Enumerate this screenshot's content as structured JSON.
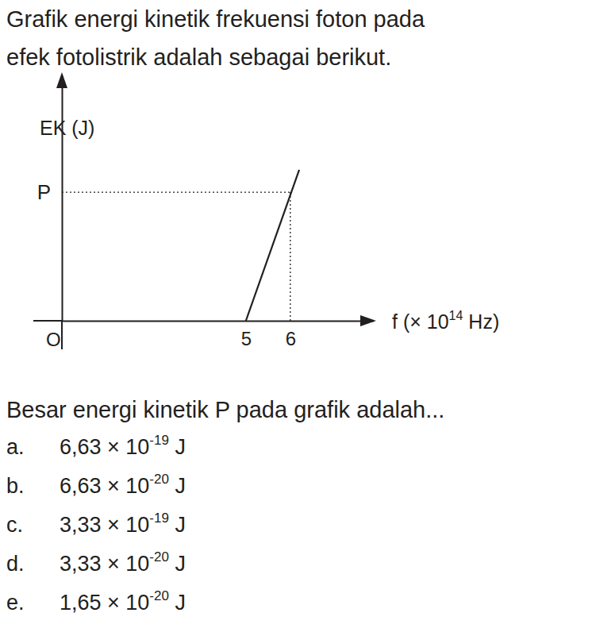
{
  "question": {
    "intro_lines": [
      "Grafik energi kinetik frekuensi foton pada",
      "efek fotolistrik adalah sebagai berikut."
    ],
    "prompt": "Besar energi kinetik P pada grafik adalah..."
  },
  "chart_data": {
    "type": "line",
    "ylabel": "EK (J)",
    "xlabel": "f (× 10",
    "xlabel_exponent": "14",
    "xlabel_unit": " Hz)",
    "origin_label": "O",
    "x": [
      5,
      6.2
    ],
    "values": [
      0,
      7.78e-20
    ],
    "xlim": [
      0.86,
      7.86
    ],
    "ylim": [
      0,
      1.265e-19
    ],
    "xticks": [
      5,
      6
    ],
    "yticks": [
      {
        "value": 6.63e-20,
        "label": "P"
      }
    ],
    "color": "#231f20"
  },
  "options": [
    {
      "letter": "a.",
      "text": "6,63 × 10",
      "exponent": "-19",
      "unit": " J"
    },
    {
      "letter": "b.",
      "text": "6,63 × 10",
      "exponent": "-20",
      "unit": " J"
    },
    {
      "letter": "c.",
      "text": "3,33 × 10",
      "exponent": "-19",
      "unit": " J"
    },
    {
      "letter": "d.",
      "text": "3,33 × 10",
      "exponent": "-20",
      "unit": " J"
    },
    {
      "letter": "e.",
      "text": "1,65 × 10",
      "exponent": "-20",
      "unit": " J"
    }
  ]
}
